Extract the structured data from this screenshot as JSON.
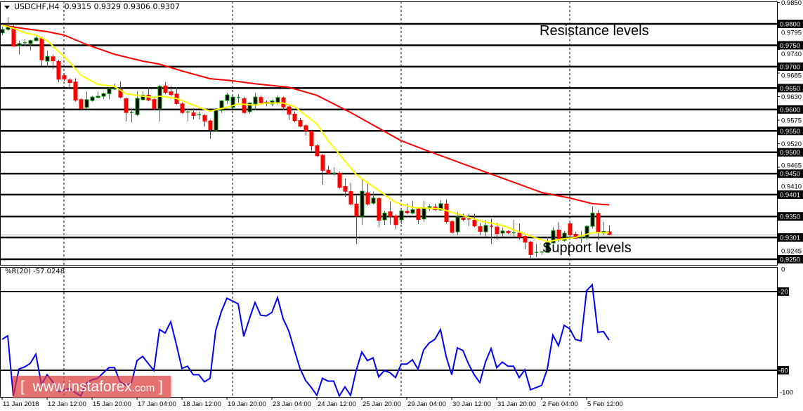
{
  "header": {
    "symbol": "USDCHF,H4",
    "ohlc": "0.9315 0.9329 0.9306 0.9307"
  },
  "indicator": {
    "label": "%R(20) -57.0248",
    "levels": [
      "-20",
      "-80"
    ],
    "axis_labels": [
      "0",
      "-100"
    ]
  },
  "annotations": {
    "resistance": "Resistance levels",
    "support": "Support levels"
  },
  "watermark": {
    "open": "[",
    "site": "www.instaforex",
    "tld": ".com",
    "close": "]"
  },
  "colors": {
    "bull_body": "#000000",
    "bull_outline": "#00a000",
    "bear": "#ff0000",
    "ma_slow": "#ff0000",
    "ma_fast": "#ffff00",
    "wpr": "#0000ff",
    "level": "#000000"
  },
  "chart_data": {
    "type": "candlestick",
    "symbol": "USDCHF",
    "timeframe": "H4",
    "price_levels": [
      "0.9800",
      "0.9750",
      "0.9700",
      "0.9650",
      "0.9600",
      "0.9550",
      "0.9500",
      "0.9450",
      "0.9401",
      "0.9350",
      "0.9301",
      "0.9250"
    ],
    "price_axis_labels": [
      "0.9850",
      "0.9795",
      "0.9740",
      "0.9685",
      "0.9630",
      "0.9575",
      "0.9520",
      "0.9465",
      "0.9410",
      "0.9245"
    ],
    "current_price": 0.9307,
    "time_labels": [
      {
        "bar": 0,
        "label": "11 Jan 2018"
      },
      {
        "bar": 8,
        "label": "12 Jan 12:00"
      },
      {
        "bar": 16,
        "label": "15 Jan 20:00"
      },
      {
        "bar": 24,
        "label": "17 Jan 04:00"
      },
      {
        "bar": 32,
        "label": "18 Jan 12:00"
      },
      {
        "bar": 40,
        "label": "19 Jan 20:00"
      },
      {
        "bar": 48,
        "label": "23 Jan 04:00"
      },
      {
        "bar": 56,
        "label": "24 Jan 12:00"
      },
      {
        "bar": 64,
        "label": "25 Jan 20:00"
      },
      {
        "bar": 72,
        "label": "29 Jan 04:00"
      },
      {
        "bar": 80,
        "label": "30 Jan 12:00"
      },
      {
        "bar": 88,
        "label": "31 Jan 20:00"
      },
      {
        "bar": 96,
        "label": "2 Feb 04:00"
      },
      {
        "bar": 104,
        "label": "5 Feb 12:00"
      }
    ],
    "separator_bars": [
      11,
      41,
      71,
      101
    ],
    "ohlc": [
      [
        0.9779,
        0.9793,
        0.9774,
        0.9787
      ],
      [
        0.9787,
        0.9815,
        0.9784,
        0.9793
      ],
      [
        0.9793,
        0.9798,
        0.9747,
        0.9747
      ],
      [
        0.9749,
        0.9761,
        0.9729,
        0.9754
      ],
      [
        0.9756,
        0.9764,
        0.9748,
        0.9756
      ],
      [
        0.9754,
        0.9763,
        0.9738,
        0.9761
      ],
      [
        0.9761,
        0.9771,
        0.9759,
        0.9767
      ],
      [
        0.9767,
        0.977,
        0.9702,
        0.9715
      ],
      [
        0.9713,
        0.9738,
        0.9699,
        0.9724
      ],
      [
        0.9724,
        0.9729,
        0.9694,
        0.9713
      ],
      [
        0.9713,
        0.9716,
        0.9664,
        0.967
      ],
      [
        0.968,
        0.9682,
        0.9667,
        0.967
      ],
      [
        0.967,
        0.9673,
        0.9651,
        0.9662
      ],
      [
        0.9665,
        0.9673,
        0.9618,
        0.9621
      ],
      [
        0.9624,
        0.9626,
        0.9599,
        0.9601
      ],
      [
        0.9605,
        0.9642,
        0.9601,
        0.9623
      ],
      [
        0.9621,
        0.9632,
        0.9618,
        0.9629
      ],
      [
        0.9628,
        0.9642,
        0.9626,
        0.9631
      ],
      [
        0.9631,
        0.9639,
        0.9624,
        0.9637
      ],
      [
        0.9637,
        0.9652,
        0.9624,
        0.9649
      ],
      [
        0.9647,
        0.966,
        0.9645,
        0.9648
      ],
      [
        0.9647,
        0.9665,
        0.9626,
        0.9628
      ],
      [
        0.9626,
        0.9628,
        0.9572,
        0.9592
      ],
      [
        0.9592,
        0.9601,
        0.957,
        0.9593
      ],
      [
        0.9588,
        0.9642,
        0.9585,
        0.9626
      ],
      [
        0.9623,
        0.9642,
        0.9621,
        0.9633
      ],
      [
        0.9634,
        0.965,
        0.9619,
        0.9621
      ],
      [
        0.9624,
        0.9626,
        0.9598,
        0.9601
      ],
      [
        0.9601,
        0.9657,
        0.9572,
        0.9654
      ],
      [
        0.9656,
        0.9664,
        0.9636,
        0.9639
      ],
      [
        0.9642,
        0.9655,
        0.9631,
        0.9634
      ],
      [
        0.9637,
        0.9652,
        0.9611,
        0.9613
      ],
      [
        0.9614,
        0.9617,
        0.959,
        0.9592
      ],
      [
        0.9593,
        0.9601,
        0.9572,
        0.9594
      ],
      [
        0.9593,
        0.9603,
        0.9577,
        0.9585
      ],
      [
        0.9587,
        0.9595,
        0.9577,
        0.9588
      ],
      [
        0.9587,
        0.9589,
        0.956,
        0.9572
      ],
      [
        0.9574,
        0.9576,
        0.9532,
        0.9552
      ],
      [
        0.955,
        0.9603,
        0.9548,
        0.96
      ],
      [
        0.9598,
        0.9622,
        0.9592,
        0.962
      ],
      [
        0.9621,
        0.9639,
        0.9613,
        0.9634
      ],
      [
        0.9605,
        0.9631,
        0.9603,
        0.9629
      ],
      [
        0.9628,
        0.9636,
        0.9616,
        0.9628
      ],
      [
        0.9626,
        0.9629,
        0.959,
        0.9592
      ],
      [
        0.9595,
        0.9617,
        0.959,
        0.9615
      ],
      [
        0.9613,
        0.9639,
        0.9598,
        0.9629
      ],
      [
        0.9629,
        0.9633,
        0.9613,
        0.9615
      ],
      [
        0.9618,
        0.9621,
        0.9608,
        0.9613
      ],
      [
        0.9613,
        0.9623,
        0.9608,
        0.962
      ],
      [
        0.9616,
        0.9633,
        0.9611,
        0.9628
      ],
      [
        0.9628,
        0.963,
        0.9598,
        0.9605
      ],
      [
        0.9607,
        0.961,
        0.9575,
        0.9588
      ],
      [
        0.959,
        0.9595,
        0.957,
        0.9573
      ],
      [
        0.9575,
        0.958,
        0.9558,
        0.956
      ],
      [
        0.9563,
        0.9565,
        0.9539,
        0.9549
      ],
      [
        0.955,
        0.9553,
        0.9503,
        0.9514
      ],
      [
        0.9516,
        0.9519,
        0.9489,
        0.9491
      ],
      [
        0.9494,
        0.9496,
        0.9424,
        0.9457
      ],
      [
        0.9459,
        0.9468,
        0.9449,
        0.945
      ],
      [
        0.945,
        0.9465,
        0.9445,
        0.9451
      ],
      [
        0.9452,
        0.9455,
        0.9415,
        0.9417
      ],
      [
        0.9421,
        0.9439,
        0.9396,
        0.9408
      ],
      [
        0.9409,
        0.9428,
        0.9376,
        0.9378
      ],
      [
        0.938,
        0.9398,
        0.9286,
        0.935
      ],
      [
        0.935,
        0.9437,
        0.933,
        0.9409
      ],
      [
        0.9406,
        0.9428,
        0.9376,
        0.9378
      ],
      [
        0.9381,
        0.9408,
        0.9378,
        0.9393
      ],
      [
        0.9393,
        0.9395,
        0.9325,
        0.934
      ],
      [
        0.9342,
        0.9363,
        0.933,
        0.9358
      ],
      [
        0.9362,
        0.9385,
        0.9331,
        0.9349
      ],
      [
        0.9352,
        0.9354,
        0.932,
        0.933
      ],
      [
        0.9342,
        0.9365,
        0.9332,
        0.9363
      ],
      [
        0.9363,
        0.938,
        0.9355,
        0.9358
      ],
      [
        0.9358,
        0.9386,
        0.9355,
        0.9366
      ],
      [
        0.9368,
        0.937,
        0.9332,
        0.9342
      ],
      [
        0.9344,
        0.9386,
        0.9337,
        0.937
      ],
      [
        0.9368,
        0.9378,
        0.9363,
        0.9373
      ],
      [
        0.9373,
        0.938,
        0.9363,
        0.9365
      ],
      [
        0.9365,
        0.9388,
        0.9363,
        0.938
      ],
      [
        0.938,
        0.939,
        0.9334,
        0.9337
      ],
      [
        0.9339,
        0.9341,
        0.931,
        0.9312
      ],
      [
        0.9314,
        0.936,
        0.9307,
        0.9349
      ],
      [
        0.9347,
        0.9357,
        0.9339,
        0.9342
      ],
      [
        0.9344,
        0.9357,
        0.9328,
        0.9342
      ],
      [
        0.9342,
        0.9357,
        0.9325,
        0.9327
      ],
      [
        0.9327,
        0.9335,
        0.9306,
        0.9314
      ],
      [
        0.9314,
        0.9342,
        0.9303,
        0.9329
      ],
      [
        0.9327,
        0.9345,
        0.9286,
        0.9326
      ],
      [
        0.9326,
        0.9335,
        0.9296,
        0.9309
      ],
      [
        0.9311,
        0.9324,
        0.9303,
        0.9316
      ],
      [
        0.9316,
        0.9318,
        0.9309,
        0.9311
      ],
      [
        0.9311,
        0.9342,
        0.9301,
        0.9312
      ],
      [
        0.9312,
        0.9334,
        0.9296,
        0.9301
      ],
      [
        0.9304,
        0.9306,
        0.9273,
        0.9289
      ],
      [
        0.9291,
        0.9293,
        0.9253,
        0.926
      ],
      [
        0.9265,
        0.9286,
        0.9255,
        0.9266
      ],
      [
        0.9266,
        0.927,
        0.926,
        0.9267
      ],
      [
        0.9266,
        0.9303,
        0.9264,
        0.9288
      ],
      [
        0.9288,
        0.9325,
        0.9286,
        0.9317
      ],
      [
        0.9319,
        0.9336,
        0.9291,
        0.9294
      ],
      [
        0.9294,
        0.9316,
        0.9291,
        0.9311
      ],
      [
        0.9334,
        0.9336,
        0.9301,
        0.9306
      ],
      [
        0.9309,
        0.9314,
        0.9298,
        0.9298
      ],
      [
        0.9298,
        0.9316,
        0.9288,
        0.93
      ],
      [
        0.93,
        0.933,
        0.9296,
        0.9327
      ],
      [
        0.9327,
        0.9374,
        0.9322,
        0.9358
      ],
      [
        0.9358,
        0.9365,
        0.9296,
        0.9314
      ],
      [
        0.9311,
        0.9337,
        0.9306,
        0.9315
      ],
      [
        0.9315,
        0.9329,
        0.9306,
        0.9307
      ]
    ],
    "ma_slow": [
      [
        0,
        0.9797
      ],
      [
        4,
        0.9789
      ],
      [
        8,
        0.9782
      ],
      [
        11,
        0.9774
      ],
      [
        15,
        0.9752
      ],
      [
        20,
        0.9729
      ],
      [
        25,
        0.9713
      ],
      [
        28,
        0.9706
      ],
      [
        32,
        0.969
      ],
      [
        37,
        0.9672
      ],
      [
        41,
        0.9667
      ],
      [
        45,
        0.966
      ],
      [
        51,
        0.9652
      ],
      [
        56,
        0.9633
      ],
      [
        62,
        0.9593
      ],
      [
        71,
        0.9527
      ],
      [
        76,
        0.9502
      ],
      [
        82,
        0.9473
      ],
      [
        91,
        0.943
      ],
      [
        96,
        0.9406
      ],
      [
        101,
        0.9393
      ],
      [
        105,
        0.938
      ],
      [
        108,
        0.9377
      ]
    ],
    "ma_fast": [
      [
        0,
        0.9797
      ],
      [
        2,
        0.979
      ],
      [
        4,
        0.9779
      ],
      [
        6,
        0.9774
      ],
      [
        8,
        0.9761
      ],
      [
        10,
        0.9736
      ],
      [
        12,
        0.9711
      ],
      [
        14,
        0.968
      ],
      [
        17,
        0.9659
      ],
      [
        20,
        0.9654
      ],
      [
        22,
        0.9637
      ],
      [
        25,
        0.9631
      ],
      [
        27,
        0.9628
      ],
      [
        28,
        0.9631
      ],
      [
        31,
        0.9626
      ],
      [
        35,
        0.9605
      ],
      [
        37,
        0.9596
      ],
      [
        40,
        0.9605
      ],
      [
        42,
        0.9613
      ],
      [
        45,
        0.961
      ],
      [
        47,
        0.9615
      ],
      [
        50,
        0.9615
      ],
      [
        52,
        0.9607
      ],
      [
        53,
        0.9597
      ],
      [
        56,
        0.9566
      ],
      [
        58,
        0.9527
      ],
      [
        63,
        0.9448
      ],
      [
        65,
        0.9429
      ],
      [
        70,
        0.9383
      ],
      [
        73,
        0.9371
      ],
      [
        78,
        0.9368
      ],
      [
        81,
        0.9356
      ],
      [
        85,
        0.934
      ],
      [
        89,
        0.9329
      ],
      [
        93,
        0.9309
      ],
      [
        97,
        0.9291
      ],
      [
        99,
        0.9296
      ],
      [
        102,
        0.9301
      ],
      [
        105,
        0.9312
      ],
      [
        108,
        0.9312
      ]
    ],
    "williams_r": {
      "period": 20,
      "range": [
        -100,
        0
      ],
      "levels": [
        -20,
        -80
      ],
      "values": [
        -56.4,
        -53.7,
        -99.6,
        -79.1,
        -77.5,
        -74.8,
        -67.7,
        -91.0,
        -83.4,
        -88.8,
        -96.4,
        -95.3,
        -93.7,
        -97.0,
        -99.6,
        -89.9,
        -87.2,
        -86.1,
        -82.0,
        -78.0,
        -78.0,
        -88.8,
        -91.5,
        -89.9,
        -72.6,
        -69.4,
        -74.8,
        -80.2,
        -48.9,
        -51.6,
        -43.0,
        -60.3,
        -78.6,
        -76.9,
        -83.4,
        -83.4,
        -88.8,
        -86.1,
        -49.8,
        -35.3,
        -25.0,
        -27.2,
        -29.3,
        -54.2,
        -40.7,
        -28.3,
        -38.0,
        -38.6,
        -35.9,
        -24.5,
        -40.7,
        -49.9,
        -64.5,
        -78.6,
        -87.8,
        -93.0,
        -99.1,
        -86.1,
        -88.3,
        -88.3,
        -99.6,
        -92.6,
        -99.1,
        -80.2,
        -66.1,
        -72.6,
        -70.5,
        -85.0,
        -80.2,
        -81.8,
        -85.6,
        -75.3,
        -75.3,
        -72.0,
        -79.1,
        -64.5,
        -59.1,
        -56.4,
        -48.9,
        -69.4,
        -83.4,
        -62.9,
        -65.0,
        -75.3,
        -83.4,
        -89.4,
        -73.7,
        -63.4,
        -78.0,
        -73.7,
        -76.9,
        -76.9,
        -85.6,
        -79.6,
        -94.8,
        -93.2,
        -91.5,
        -79.1,
        -53.2,
        -61.3,
        -45.7,
        -48.4,
        -56.5,
        -57.6,
        -19.2,
        -14.8,
        -51.0,
        -50.5,
        -57.0
      ]
    }
  }
}
